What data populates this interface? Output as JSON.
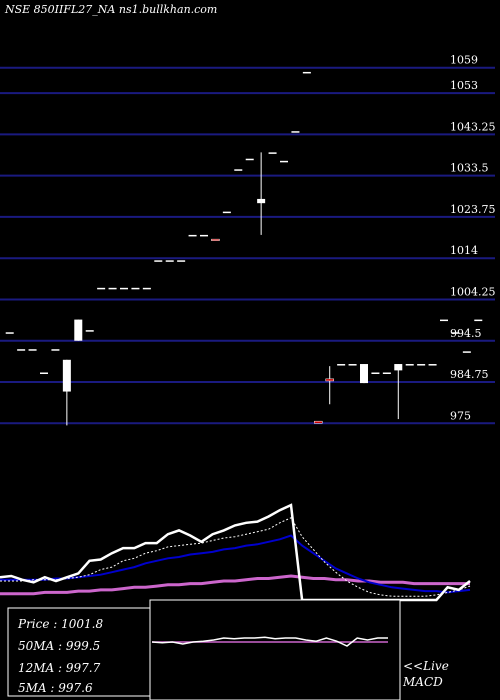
{
  "header": {
    "symbol_label": "NSE 850IIFL27_NA ns1.bullkhan.com"
  },
  "chart_data": {
    "type": "candlestick",
    "price_axis": {
      "ticks": [
        "1059",
        "1053",
        "1043.25",
        "1033.5",
        "1023.75",
        "1014",
        "1004.25",
        "994.5",
        "984.75",
        "975"
      ],
      "tick_values": [
        1059,
        1053,
        1043.25,
        1033.5,
        1023.75,
        1014,
        1004.25,
        994.5,
        984.75,
        975
      ],
      "range": [
        972,
        1062
      ]
    },
    "candles": [
      {
        "o": 996.5,
        "h": 996.5,
        "l": 996.5,
        "c": 996.5,
        "col": "white"
      },
      {
        "o": 992.5,
        "h": 992.5,
        "l": 992.5,
        "c": 992.5,
        "col": "white"
      },
      {
        "o": 992.5,
        "h": 992.5,
        "l": 992.5,
        "c": 992.5,
        "col": "white"
      },
      {
        "o": 987.0,
        "h": 987.0,
        "l": 987.0,
        "c": 987.0,
        "col": "white"
      },
      {
        "o": 992.5,
        "h": 992.5,
        "l": 992.5,
        "c": 992.5,
        "col": "white"
      },
      {
        "o": 990.0,
        "h": 990.0,
        "l": 974.5,
        "c": 982.5,
        "col": "white"
      },
      {
        "o": 999.5,
        "h": 999.5,
        "l": 994.5,
        "c": 994.5,
        "col": "white"
      },
      {
        "o": 997.0,
        "h": 997.0,
        "l": 997.0,
        "c": 997.0,
        "col": "white"
      },
      {
        "o": 1007.0,
        "h": 1007.0,
        "l": 1007.0,
        "c": 1007.0,
        "col": "white"
      },
      {
        "o": 1007.0,
        "h": 1007.0,
        "l": 1007.0,
        "c": 1007.0,
        "col": "white"
      },
      {
        "o": 1007.0,
        "h": 1007.0,
        "l": 1007.0,
        "c": 1007.0,
        "col": "white"
      },
      {
        "o": 1007.0,
        "h": 1007.0,
        "l": 1007.0,
        "c": 1007.0,
        "col": "white"
      },
      {
        "o": 1007.0,
        "h": 1007.0,
        "l": 1007.0,
        "c": 1007.0,
        "col": "white"
      },
      {
        "o": 1013.5,
        "h": 1013.5,
        "l": 1013.5,
        "c": 1013.5,
        "col": "white"
      },
      {
        "o": 1013.5,
        "h": 1013.5,
        "l": 1013.5,
        "c": 1013.5,
        "col": "white"
      },
      {
        "o": 1013.5,
        "h": 1013.5,
        "l": 1013.5,
        "c": 1013.5,
        "col": "white"
      },
      {
        "o": 1019.5,
        "h": 1019.5,
        "l": 1019.5,
        "c": 1019.5,
        "col": "white"
      },
      {
        "o": 1019.5,
        "h": 1019.5,
        "l": 1019.5,
        "c": 1019.5,
        "col": "white"
      },
      {
        "o": 1018.5,
        "h": 1018.5,
        "l": 1018.5,
        "c": 1018.5,
        "col": "red"
      },
      {
        "o": 1025.0,
        "h": 1025.0,
        "l": 1025.0,
        "c": 1025.0,
        "col": "white"
      },
      {
        "o": 1035.0,
        "h": 1035.0,
        "l": 1035.0,
        "c": 1035.0,
        "col": "white"
      },
      {
        "o": 1037.5,
        "h": 1037.5,
        "l": 1037.5,
        "c": 1037.5,
        "col": "white"
      },
      {
        "o": 1027.0,
        "h": 1039.0,
        "l": 1019.5,
        "c": 1028.0,
        "col": "white"
      },
      {
        "o": 1039.0,
        "h": 1039.0,
        "l": 1039.0,
        "c": 1039.0,
        "col": "white"
      },
      {
        "o": 1037.0,
        "h": 1037.0,
        "l": 1037.0,
        "c": 1037.0,
        "col": "white"
      },
      {
        "o": 1044.0,
        "h": 1044.0,
        "l": 1044.0,
        "c": 1044.0,
        "col": "white"
      },
      {
        "o": 1058.0,
        "h": 1058.0,
        "l": 1058.0,
        "c": 1058.0,
        "col": "white"
      },
      {
        "o": 975.5,
        "h": 975.5,
        "l": 975.0,
        "c": 975.0,
        "col": "red"
      },
      {
        "o": 985.0,
        "h": 988.5,
        "l": 979.5,
        "c": 985.5,
        "col": "red"
      },
      {
        "o": 989.0,
        "h": 989.0,
        "l": 989.0,
        "c": 989.0,
        "col": "white"
      },
      {
        "o": 989.0,
        "h": 989.0,
        "l": 989.0,
        "c": 989.0,
        "col": "white"
      },
      {
        "o": 989.0,
        "h": 989.0,
        "l": 984.5,
        "c": 984.5,
        "col": "white"
      },
      {
        "o": 987.0,
        "h": 987.0,
        "l": 987.0,
        "c": 987.0,
        "col": "white"
      },
      {
        "o": 987.0,
        "h": 987.0,
        "l": 987.0,
        "c": 987.0,
        "col": "white"
      },
      {
        "o": 989.0,
        "h": 989.0,
        "l": 976.0,
        "c": 987.5,
        "col": "white"
      },
      {
        "o": 989.0,
        "h": 989.0,
        "l": 989.0,
        "c": 989.0,
        "col": "white"
      },
      {
        "o": 989.0,
        "h": 989.0,
        "l": 989.0,
        "c": 989.0,
        "col": "white"
      },
      {
        "o": 989.0,
        "h": 989.0,
        "l": 989.0,
        "c": 989.0,
        "col": "white"
      },
      {
        "o": 999.5,
        "h": 999.5,
        "l": 999.5,
        "c": 999.5,
        "col": "white"
      },
      {
        "o": 996.5,
        "h": 996.5,
        "l": 996.5,
        "c": 996.5,
        "col": "white"
      },
      {
        "o": 992.0,
        "h": 992.0,
        "l": 992.0,
        "c": 992.0,
        "col": "white"
      },
      {
        "o": 999.5,
        "h": 999.5,
        "l": 999.5,
        "c": 999.5,
        "col": "white"
      }
    ],
    "indicator_lines": {
      "range": [
        975,
        1058
      ],
      "price": [
        993,
        994,
        991,
        989,
        993,
        990,
        993,
        996,
        1006,
        1007,
        1012,
        1016,
        1016,
        1020,
        1020,
        1027,
        1030,
        1026,
        1021,
        1027,
        1030,
        1034,
        1036,
        1037,
        1041,
        1046,
        1050,
        975,
        975,
        975,
        975,
        975,
        975,
        975,
        975,
        975,
        975,
        975,
        975,
        975,
        985,
        983,
        990
      ],
      "ma5": [
        990,
        990,
        990,
        991,
        991,
        991,
        992,
        993,
        995,
        999,
        1001,
        1006,
        1008,
        1012,
        1014,
        1017,
        1018,
        1019,
        1020,
        1022,
        1024,
        1025,
        1027,
        1029,
        1031,
        1036,
        1040,
        1025,
        1015,
        1005,
        997,
        990,
        985,
        981,
        979,
        978,
        978,
        978,
        978,
        979,
        981,
        983,
        986
      ],
      "ma12": [
        991,
        991,
        991,
        991,
        991,
        992,
        992,
        993,
        994,
        995,
        997,
        999,
        1001,
        1004,
        1006,
        1008,
        1009,
        1011,
        1012,
        1013,
        1015,
        1016,
        1018,
        1019,
        1021,
        1023,
        1026,
        1018,
        1012,
        1006,
        1000,
        996,
        992,
        989,
        987,
        985,
        984,
        983,
        982,
        982,
        981,
        982,
        983
      ],
      "ma50": [
        980,
        980,
        980,
        980,
        981,
        981,
        981,
        982,
        982,
        983,
        983,
        984,
        985,
        985,
        986,
        987,
        987,
        988,
        988,
        989,
        990,
        990,
        991,
        992,
        992,
        993,
        994,
        993,
        992,
        992,
        991,
        991,
        990,
        990,
        989,
        989,
        989,
        988,
        988,
        988,
        988,
        988,
        988
      ]
    },
    "macd": {
      "range": [
        -1,
        1
      ],
      "values": [
        0.2,
        0.18,
        0.2,
        0.15,
        0.2,
        0.22,
        0.25,
        0.3,
        0.28,
        0.3,
        0.3,
        0.32,
        0.28,
        0.3,
        0.3,
        0.25,
        0.22,
        0.3,
        0.22,
        0.1,
        0.3,
        0.25,
        0.3,
        0.3
      ],
      "signal": [
        0.2,
        0.2,
        0.2,
        0.2,
        0.2,
        0.2,
        0.2,
        0.2,
        0.2,
        0.2,
        0.2,
        0.2,
        0.2,
        0.2,
        0.2,
        0.2,
        0.2,
        0.2,
        0.2,
        0.2,
        0.2,
        0.2,
        0.2,
        0.2
      ]
    },
    "colors": {
      "price_line": "#ffffff",
      "ma5": "#ffffff",
      "ma12": "#0000cc",
      "ma50": "#cc66cc",
      "grid": "#1a1a80",
      "candle_up": "#ffffff",
      "candle_down": "#cc0000"
    }
  },
  "info_box": {
    "price_label": "Price  : 1001.8",
    "ma50_label": "50MA : 999.5",
    "ma12_label": "12MA : 997.7",
    "ma5_label": "5MA : 997.6"
  },
  "macd_box": {
    "live_label": "<<Live",
    "macd_label": "MACD"
  }
}
